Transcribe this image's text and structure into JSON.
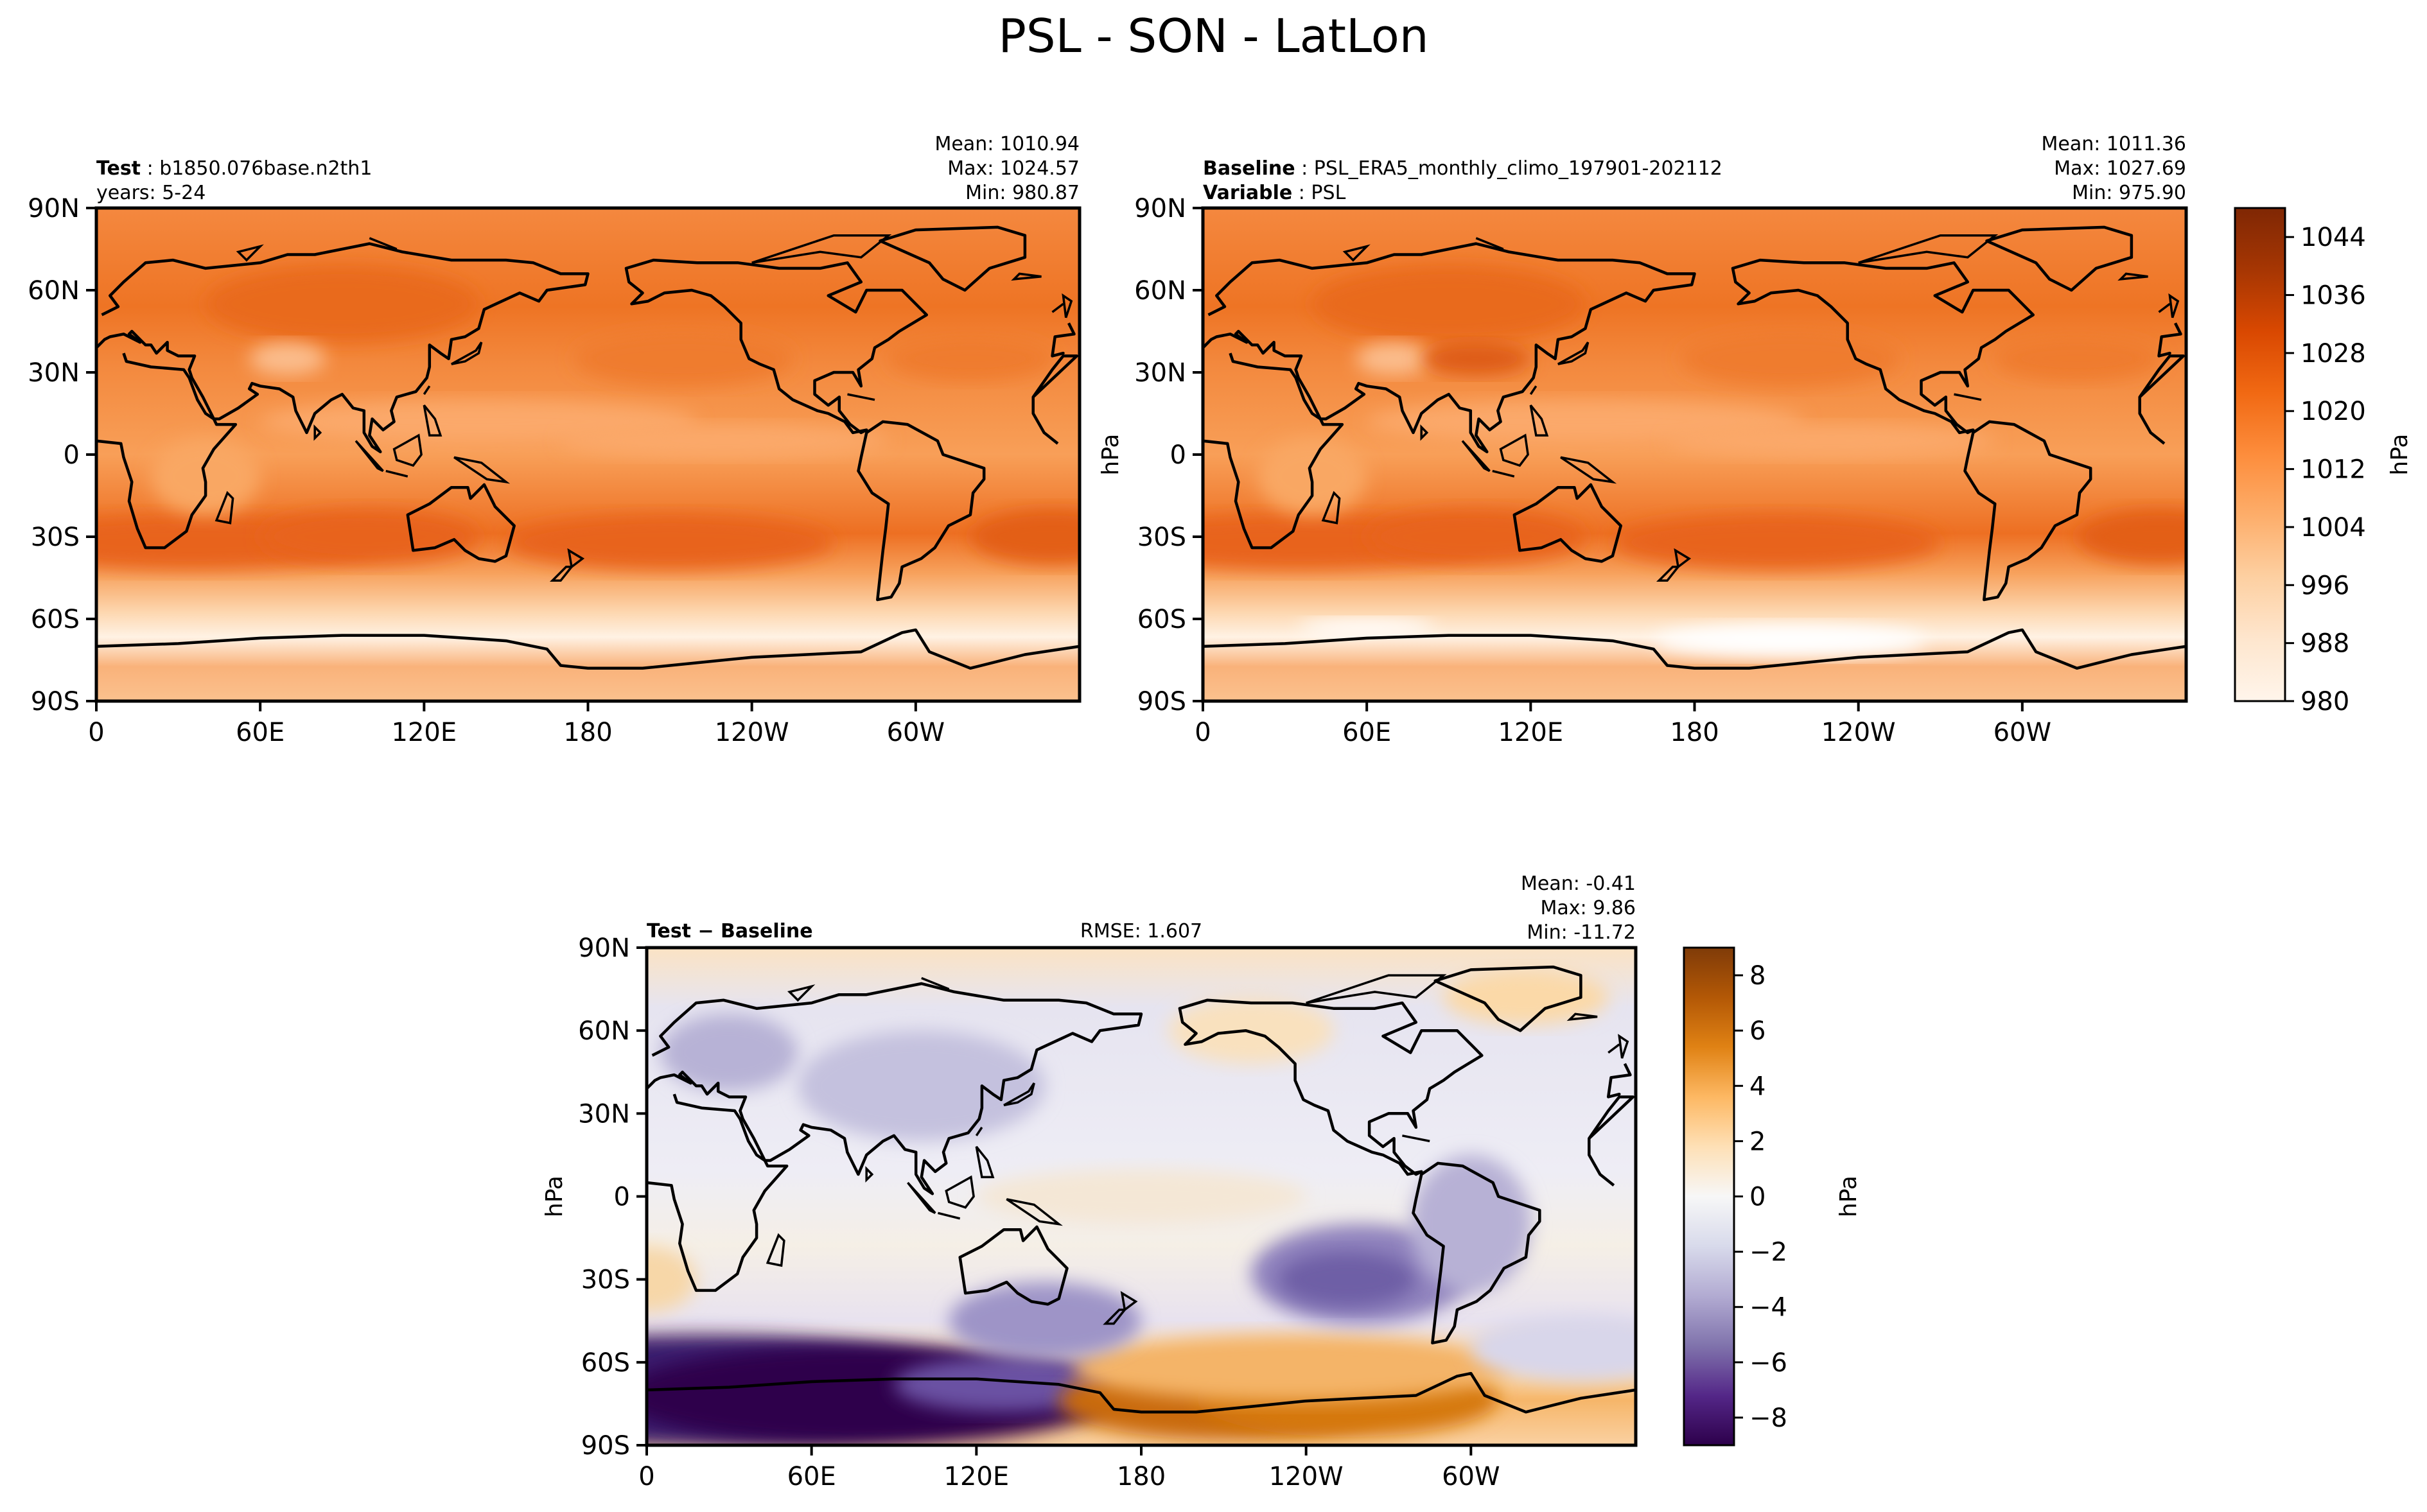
{
  "figure": {
    "title": "PSL - SON - LatLon"
  },
  "chart_data": [
    {
      "type": "heatmap",
      "panel": "test",
      "label_bold": "Test",
      "label_value": "b1850.076base.n2th1",
      "subtitle": "years: 5-24",
      "stats": [
        "Mean: 1010.94",
        "Max: 1024.57",
        "Min: 980.87"
      ],
      "x_ticks": [
        "0",
        "60E",
        "120E",
        "180",
        "120W",
        "60W"
      ],
      "y_ticks": [
        "90N",
        "60N",
        "30N",
        "0",
        "30S",
        "60S",
        "90S"
      ],
      "ylabel": "",
      "field": "test"
    },
    {
      "type": "heatmap",
      "panel": "baseline",
      "label_bold": "Baseline",
      "label_value": "PSL_ERA5_monthly_climo_197901-202112",
      "label2_bold": "Variable",
      "label2_value": "PSL",
      "stats": [
        "Mean: 1011.36",
        "Max: 1027.69",
        "Min: 975.90"
      ],
      "x_ticks": [
        "0",
        "60E",
        "120E",
        "180",
        "120W",
        "60W"
      ],
      "y_ticks": [
        "90N",
        "60N",
        "30N",
        "0",
        "30S",
        "60S",
        "90S"
      ],
      "ylabel": "hPa",
      "field": "baseline",
      "colorbar": {
        "ticks": [
          "1044",
          "1036",
          "1028",
          "1020",
          "1012",
          "1004",
          "996",
          "988",
          "980"
        ],
        "range": [
          980,
          1048
        ],
        "label": "hPa",
        "colors": [
          "#fff5eb",
          "#fee6ce",
          "#fdd0a2",
          "#fdae6b",
          "#fd8d3c",
          "#f16913",
          "#d94801",
          "#a63603",
          "#7f2704"
        ]
      }
    },
    {
      "type": "heatmap",
      "panel": "difference",
      "label_bold": "Test − Baseline",
      "rmse": "RMSE: 1.607",
      "stats": [
        "Mean: -0.41",
        "Max:  9.86",
        "Min: -11.72"
      ],
      "x_ticks": [
        "0",
        "60E",
        "120E",
        "180",
        "120W",
        "60W"
      ],
      "y_ticks": [
        "90N",
        "60N",
        "30N",
        "0",
        "30S",
        "60S",
        "90S"
      ],
      "ylabel": "hPa",
      "field": "diff",
      "colorbar": {
        "ticks": [
          "8",
          "6",
          "4",
          "2",
          "0",
          "−2",
          "−4",
          "−6",
          "−8"
        ],
        "range": [
          -9,
          9
        ],
        "label": "hPa",
        "colors": [
          "#2d004b",
          "#542788",
          "#8073ac",
          "#b2abd2",
          "#d8daeb",
          "#f7f7f7",
          "#fee0b6",
          "#fdb863",
          "#e08214",
          "#b35806",
          "#7f3b08"
        ]
      }
    }
  ]
}
